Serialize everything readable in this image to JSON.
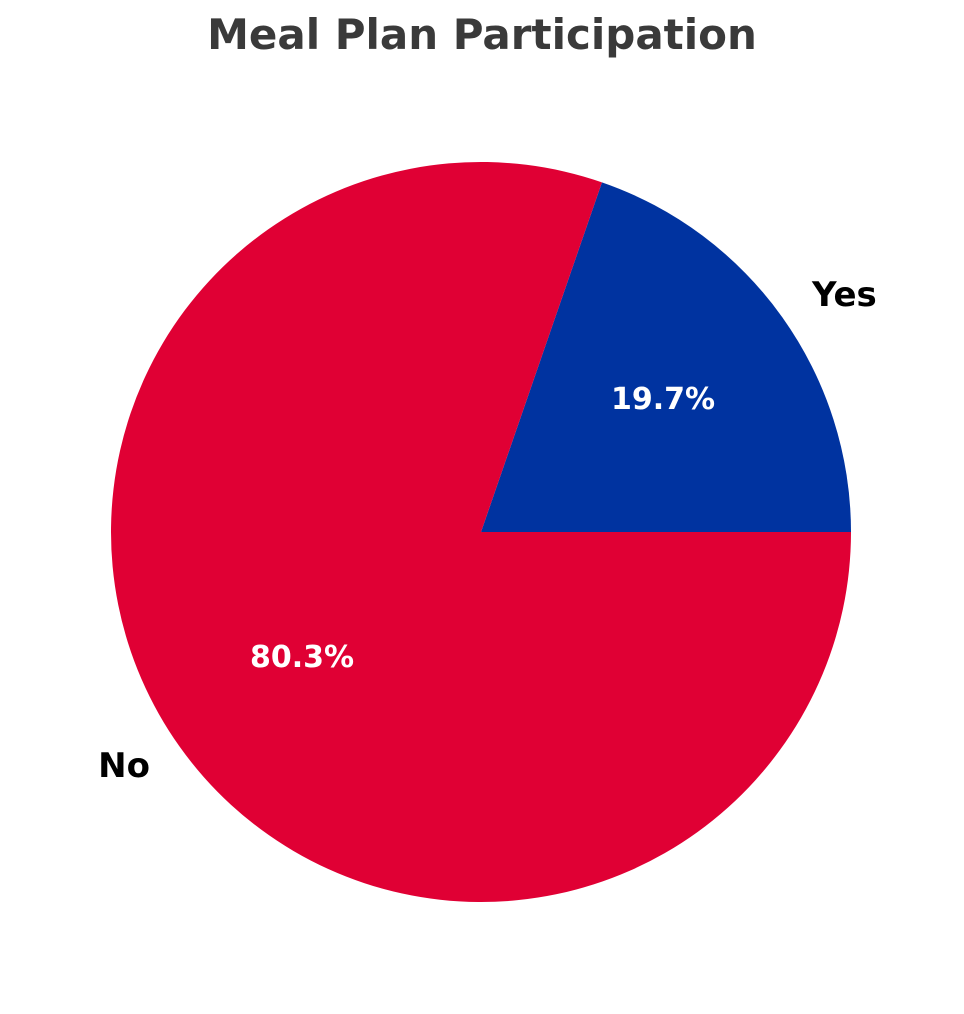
{
  "chart_data": {
    "type": "pie",
    "title": "Meal Plan Participation",
    "categories": [
      "Yes",
      "No"
    ],
    "values": [
      19.7,
      80.3
    ],
    "value_labels": [
      "19.7%",
      "80.3%"
    ],
    "colors": [
      "#0033A0",
      "#E00034"
    ],
    "start_angle_deg": 0,
    "direction": "counterclockwise",
    "legend": "none",
    "title_color": "#3a3a3a",
    "category_label_color": "#000000",
    "pct_label_color": "#ffffff",
    "background_color": "#ffffff"
  }
}
